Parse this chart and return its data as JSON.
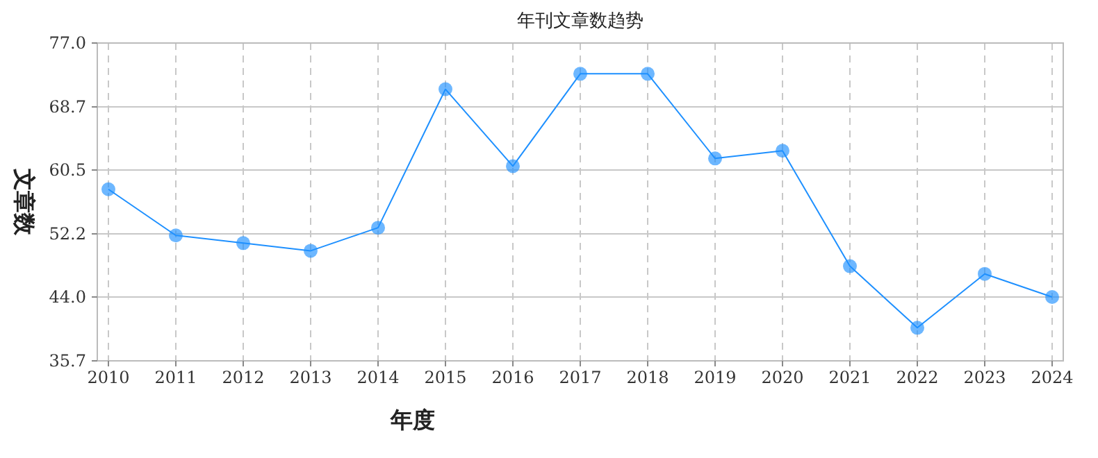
{
  "chart_data": {
    "type": "line",
    "title": "年刊文章数趋势",
    "xlabel": "年度",
    "ylabel": "文章数",
    "categories": [
      "2010",
      "2011",
      "2012",
      "2013",
      "2014",
      "2015",
      "2016",
      "2017",
      "2018",
      "2019",
      "2020",
      "2021",
      "2022",
      "2023",
      "2024"
    ],
    "series": [
      {
        "color": "#1e90ff",
        "values": [
          58,
          52,
          51,
          50,
          53,
          71,
          61,
          73,
          73,
          62,
          63,
          48,
          40,
          47,
          44
        ]
      }
    ],
    "ylim": [
      35.7,
      77.0
    ],
    "yticks": [
      35.7,
      {
        "value": 44,
        "label": "44.0"
      },
      52.2,
      60.5,
      68.7,
      {
        "value": 77,
        "label": "77.0"
      }
    ],
    "grid": true,
    "marker": "circle",
    "line_style": "solid"
  }
}
